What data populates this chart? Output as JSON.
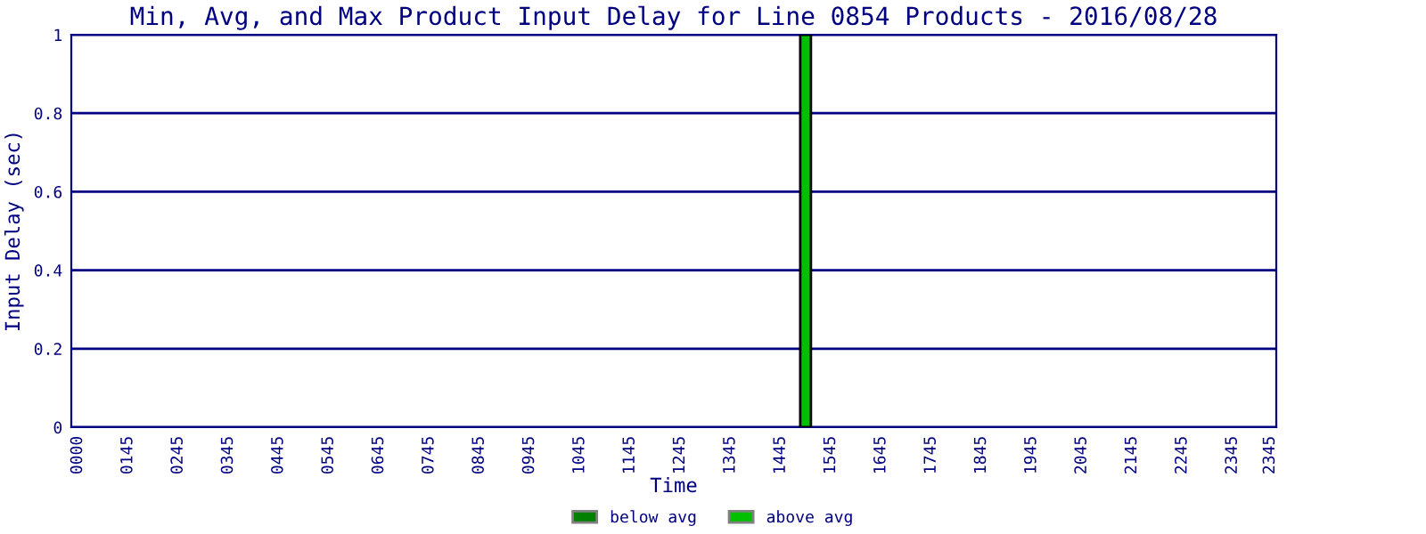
{
  "chart_data": {
    "type": "bar",
    "title": "Min, Avg, and Max Product Input Delay for Line 0854 Products - 2016/08/28",
    "xlabel": "Time",
    "ylabel": "Input Delay (sec)",
    "categories": [
      "0000",
      null,
      null,
      null,
      "0145",
      null,
      null,
      null,
      "0245",
      null,
      null,
      null,
      "0345",
      null,
      null,
      null,
      "0445",
      null,
      null,
      null,
      "0545",
      null,
      null,
      null,
      "0645",
      null,
      null,
      null,
      "0745",
      null,
      null,
      null,
      "0845",
      null,
      null,
      null,
      "0945",
      null,
      null,
      null,
      "1045",
      null,
      null,
      null,
      "1145",
      null,
      null,
      null,
      "1245",
      null,
      null,
      null,
      "1345",
      null,
      null,
      null,
      "1445",
      null,
      null,
      null,
      "1545",
      null,
      null,
      null,
      "1645",
      null,
      null,
      null,
      "1745",
      null,
      null,
      null,
      "1845",
      null,
      null,
      null,
      "1945",
      null,
      null,
      null,
      "2045",
      null,
      null,
      null,
      "2145",
      null,
      null,
      null,
      "2245",
      null,
      null,
      null,
      "2345",
      null,
      null,
      "2345"
    ],
    "series": [
      {
        "name": "below avg",
        "color": "#008000",
        "values": [
          null,
          null,
          null,
          null,
          null,
          null,
          null,
          null,
          null,
          null,
          null,
          null,
          null,
          null,
          null,
          null,
          null,
          null,
          null,
          null,
          null,
          null,
          null,
          null,
          null,
          null,
          null,
          null,
          null,
          null,
          null,
          null,
          null,
          null,
          null,
          null,
          null,
          null,
          null,
          null,
          null,
          null,
          null,
          null,
          null,
          null,
          null,
          null,
          null,
          null,
          null,
          null,
          null,
          null,
          null,
          null,
          null,
          null,
          0,
          null,
          null,
          null,
          null,
          null,
          null,
          null,
          null,
          null,
          null,
          null,
          null,
          null,
          null,
          null,
          null,
          null,
          null,
          null,
          null,
          null,
          null,
          null,
          null,
          null,
          null,
          null,
          null,
          null,
          null,
          null,
          null,
          null,
          null,
          null,
          null,
          null
        ]
      },
      {
        "name": "above avg",
        "color": "#00c000",
        "values": [
          null,
          null,
          null,
          null,
          null,
          null,
          null,
          null,
          null,
          null,
          null,
          null,
          null,
          null,
          null,
          null,
          null,
          null,
          null,
          null,
          null,
          null,
          null,
          null,
          null,
          null,
          null,
          null,
          null,
          null,
          null,
          null,
          null,
          null,
          null,
          null,
          null,
          null,
          null,
          null,
          null,
          null,
          null,
          null,
          null,
          null,
          null,
          null,
          null,
          null,
          null,
          null,
          null,
          null,
          null,
          null,
          null,
          null,
          1,
          null,
          null,
          null,
          null,
          null,
          null,
          null,
          null,
          null,
          null,
          null,
          null,
          null,
          null,
          null,
          null,
          null,
          null,
          null,
          null,
          null,
          null,
          null,
          null,
          null,
          null,
          null,
          null,
          null,
          null,
          null,
          null,
          null,
          null,
          null,
          null,
          null
        ]
      }
    ],
    "ylim": [
      0,
      1
    ],
    "yticks": [
      0,
      0.2,
      0.4,
      0.6,
      0.8,
      1
    ],
    "grid": "y",
    "legend": "bottom"
  }
}
